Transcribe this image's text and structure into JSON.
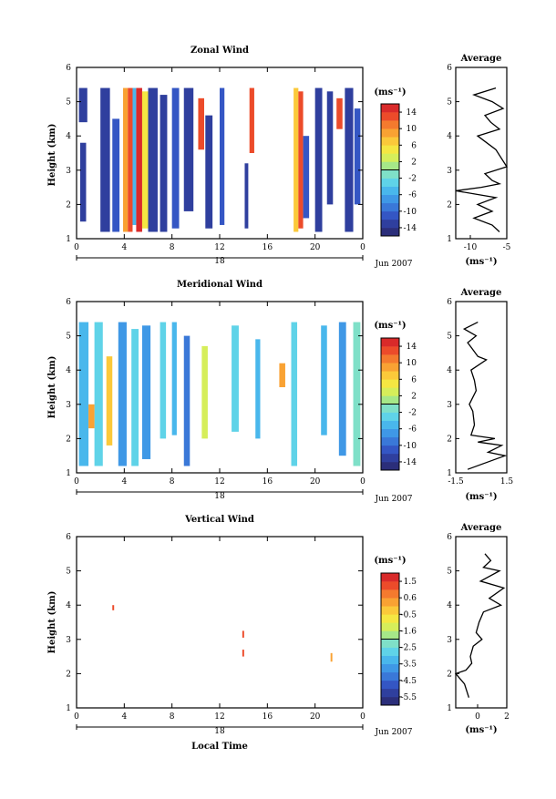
{
  "x_axis_label": "Local Time",
  "date_label": "Jun 2007",
  "day_label": "18",
  "panels": [
    {
      "title": "Zonal Wind",
      "avg_title": "Average",
      "ylabel": "Height (km)",
      "cbar_label": "(ms⁻¹)",
      "avg_xlabel": "(ms⁻¹)"
    },
    {
      "title": "Meridional Wind",
      "avg_title": "Average",
      "ylabel": "Height (km)",
      "cbar_label": "(ms⁻¹)",
      "avg_xlabel": "(ms⁻¹)"
    },
    {
      "title": "Vertical Wind",
      "avg_title": "Average",
      "ylabel": "Height (km)",
      "cbar_label": "(ms⁻¹)",
      "avg_xlabel": "(ms⁻¹)"
    }
  ],
  "chart_data": [
    {
      "type": "heatmap",
      "title": "Zonal Wind",
      "xlabel": "",
      "ylabel": "Height (km)",
      "xlim": [
        0,
        24
      ],
      "ylim": [
        1,
        6
      ],
      "x_ticks": [
        "0",
        "4",
        "8",
        "12",
        "16",
        "20",
        "0"
      ],
      "y_ticks": [
        "1",
        "2",
        "3",
        "4",
        "5",
        "6"
      ],
      "colorbar": {
        "label": "(ms⁻¹)",
        "range": [
          -16,
          16
        ],
        "ticks": [
          "14",
          "10",
          "6",
          "2",
          "-2",
          "-6",
          "-10",
          "-14"
        ]
      },
      "blocks": [
        {
          "t0": 0.2,
          "t1": 0.9,
          "h0": 4.4,
          "h1": 5.4,
          "v": -14
        },
        {
          "t0": 0.3,
          "t1": 0.8,
          "h0": 1.5,
          "h1": 3.8,
          "v": -13
        },
        {
          "t0": 2.0,
          "t1": 2.8,
          "h0": 1.2,
          "h1": 5.4,
          "v": -13
        },
        {
          "t0": 3.0,
          "t1": 3.6,
          "h0": 1.2,
          "h1": 4.5,
          "v": -12
        },
        {
          "t0": 3.9,
          "t1": 4.3,
          "h0": 1.2,
          "h1": 5.4,
          "v": 9
        },
        {
          "t0": 4.3,
          "t1": 4.7,
          "h0": 1.2,
          "h1": 5.4,
          "v": 13
        },
        {
          "t0": 4.7,
          "t1": 5.0,
          "h0": 1.4,
          "h1": 5.4,
          "v": -5
        },
        {
          "t0": 5.0,
          "t1": 5.5,
          "h0": 1.2,
          "h1": 5.4,
          "v": 14
        },
        {
          "t0": 5.5,
          "t1": 6.0,
          "h0": 1.3,
          "h1": 5.3,
          "v": 5
        },
        {
          "t0": 6.0,
          "t1": 6.8,
          "h0": 1.2,
          "h1": 5.4,
          "v": -14
        },
        {
          "t0": 7.0,
          "t1": 7.6,
          "h0": 1.2,
          "h1": 5.2,
          "v": -13
        },
        {
          "t0": 8.0,
          "t1": 8.6,
          "h0": 1.3,
          "h1": 5.4,
          "v": -12
        },
        {
          "t0": 9.0,
          "t1": 9.8,
          "h0": 1.8,
          "h1": 5.4,
          "v": -14
        },
        {
          "t0": 10.2,
          "t1": 10.7,
          "h0": 3.6,
          "h1": 5.1,
          "v": 12
        },
        {
          "t0": 10.8,
          "t1": 11.4,
          "h0": 1.3,
          "h1": 4.6,
          "v": -13
        },
        {
          "t0": 12.0,
          "t1": 12.4,
          "h0": 1.4,
          "h1": 5.4,
          "v": -12
        },
        {
          "t0": 14.1,
          "t1": 14.4,
          "h0": 1.3,
          "h1": 3.2,
          "v": -14
        },
        {
          "t0": 14.5,
          "t1": 14.9,
          "h0": 3.5,
          "h1": 5.4,
          "v": 12
        },
        {
          "t0": 18.2,
          "t1": 18.6,
          "h0": 1.2,
          "h1": 5.4,
          "v": 7
        },
        {
          "t0": 18.6,
          "t1": 19.0,
          "h0": 1.3,
          "h1": 5.3,
          "v": 13
        },
        {
          "t0": 19.0,
          "t1": 19.5,
          "h0": 1.6,
          "h1": 4.0,
          "v": -12
        },
        {
          "t0": 20.0,
          "t1": 20.6,
          "h0": 1.2,
          "h1": 5.4,
          "v": -14
        },
        {
          "t0": 21.0,
          "t1": 21.5,
          "h0": 2.0,
          "h1": 5.3,
          "v": -13
        },
        {
          "t0": 21.8,
          "t1": 22.3,
          "h0": 4.2,
          "h1": 5.1,
          "v": 13
        },
        {
          "t0": 22.5,
          "t1": 23.2,
          "h0": 1.2,
          "h1": 5.4,
          "v": -14
        },
        {
          "t0": 23.3,
          "t1": 23.8,
          "h0": 2.0,
          "h1": 4.8,
          "v": -12
        }
      ],
      "profile": {
        "xlim": [
          -12,
          -5
        ],
        "x_ticks": [
          "-10",
          "-5"
        ],
        "xlabel": "(ms⁻¹)",
        "x": [
          -6.5,
          -9.5,
          -7.0,
          -5.5,
          -8.0,
          -7.2,
          -6.0,
          -9.0,
          -6.5,
          -5.0,
          -8.0,
          -7.0,
          -6.0,
          -8.5,
          -12.0,
          -6.5,
          -9.0,
          -7.0,
          -9.5,
          -7.0,
          -6.0
        ],
        "h": [
          5.4,
          5.2,
          5.0,
          4.8,
          4.6,
          4.4,
          4.2,
          4.0,
          3.6,
          3.1,
          2.9,
          2.7,
          2.6,
          2.5,
          2.4,
          2.2,
          2.0,
          1.8,
          1.6,
          1.4,
          1.2
        ]
      }
    },
    {
      "type": "heatmap",
      "title": "Meridional Wind",
      "xlabel": "",
      "ylabel": "Height (km)",
      "xlim": [
        0,
        24
      ],
      "ylim": [
        1,
        6
      ],
      "x_ticks": [
        "0",
        "4",
        "8",
        "12",
        "16",
        "20",
        "0"
      ],
      "y_ticks": [
        "1",
        "2",
        "3",
        "4",
        "5",
        "6"
      ],
      "colorbar": {
        "label": "(ms⁻¹)",
        "range": [
          -16,
          16
        ],
        "ticks": [
          "14",
          "10",
          "6",
          "2",
          "-2",
          "-6",
          "-10",
          "-14"
        ]
      },
      "blocks": [
        {
          "t0": 0.2,
          "t1": 1.0,
          "h0": 1.2,
          "h1": 5.4,
          "v": -6
        },
        {
          "t0": 1.5,
          "t1": 2.2,
          "h0": 1.2,
          "h1": 5.4,
          "v": -4
        },
        {
          "t0": 2.5,
          "t1": 3.0,
          "h0": 1.8,
          "h1": 4.4,
          "v": 6
        },
        {
          "t0": 3.5,
          "t1": 4.2,
          "h0": 1.2,
          "h1": 5.4,
          "v": -7
        },
        {
          "t0": 4.6,
          "t1": 5.2,
          "h0": 1.2,
          "h1": 5.2,
          "v": -3
        },
        {
          "t0": 5.5,
          "t1": 6.2,
          "h0": 1.4,
          "h1": 5.3,
          "v": -8
        },
        {
          "t0": 7.0,
          "t1": 7.5,
          "h0": 2.0,
          "h1": 5.4,
          "v": -3
        },
        {
          "t0": 8.0,
          "t1": 8.4,
          "h0": 2.1,
          "h1": 5.4,
          "v": -5
        },
        {
          "t0": 9.0,
          "t1": 9.5,
          "h0": 1.2,
          "h1": 5.0,
          "v": -9
        },
        {
          "t0": 10.5,
          "t1": 11.0,
          "h0": 2.0,
          "h1": 4.7,
          "v": 2
        },
        {
          "t0": 13.0,
          "t1": 13.6,
          "h0": 2.2,
          "h1": 5.3,
          "v": -4
        },
        {
          "t0": 15.0,
          "t1": 15.4,
          "h0": 2.0,
          "h1": 4.9,
          "v": -6
        },
        {
          "t0": 18.0,
          "t1": 18.5,
          "h0": 1.2,
          "h1": 5.4,
          "v": -3
        },
        {
          "t0": 20.5,
          "t1": 21.0,
          "h0": 2.1,
          "h1": 5.3,
          "v": -5
        },
        {
          "t0": 22.0,
          "t1": 22.6,
          "h0": 1.5,
          "h1": 5.4,
          "v": -7
        },
        {
          "t0": 23.2,
          "t1": 23.8,
          "h0": 1.2,
          "h1": 5.4,
          "v": -2
        },
        {
          "t0": 1.0,
          "t1": 1.5,
          "h0": 2.3,
          "h1": 3.0,
          "v": 9
        },
        {
          "t0": 17.0,
          "t1": 17.5,
          "h0": 3.5,
          "h1": 4.2,
          "v": 9
        }
      ],
      "profile": {
        "xlim": [
          -1.5,
          1.5
        ],
        "x_ticks": [
          "-1.5",
          "1.5"
        ],
        "xlabel": "(ms⁻¹)",
        "x": [
          -0.2,
          -1.0,
          -0.3,
          -0.8,
          -0.5,
          -0.2,
          0.3,
          -0.6,
          -0.4,
          -0.3,
          -0.7,
          -0.5,
          -0.4,
          -0.6,
          0.8,
          -0.2,
          1.2,
          0.4,
          1.4,
          0.3,
          -0.8
        ],
        "h": [
          5.4,
          5.2,
          5.0,
          4.8,
          4.6,
          4.4,
          4.3,
          4.0,
          3.7,
          3.4,
          3.0,
          2.8,
          2.4,
          2.1,
          2.0,
          1.9,
          1.8,
          1.6,
          1.5,
          1.3,
          1.1
        ]
      }
    },
    {
      "type": "heatmap",
      "title": "Vertical Wind",
      "xlabel": "Local Time",
      "ylabel": "Height (km)",
      "xlim": [
        0,
        24
      ],
      "ylim": [
        1,
        6
      ],
      "x_ticks": [
        "0",
        "4",
        "8",
        "12",
        "16",
        "20",
        "0"
      ],
      "y_ticks": [
        "1",
        "2",
        "3",
        "4",
        "5",
        "6"
      ],
      "colorbar": {
        "label": "(ms⁻¹)",
        "range": [
          -6,
          2
        ],
        "ticks": [
          "1.5",
          "0.6",
          "-0.5",
          "-1.6",
          "-2.5",
          "-3.5",
          "-4.5",
          "-5.5"
        ]
      },
      "blocks": [
        {
          "t0": 3.0,
          "t1": 3.15,
          "h0": 3.85,
          "h1": 4.0,
          "v": 1.0
        },
        {
          "t0": 13.9,
          "t1": 14.05,
          "h0": 3.05,
          "h1": 3.25,
          "v": 1.3
        },
        {
          "t0": 13.9,
          "t1": 14.05,
          "h0": 2.5,
          "h1": 2.7,
          "v": 1.0
        },
        {
          "t0": 21.3,
          "t1": 21.45,
          "h0": 2.35,
          "h1": 2.6,
          "v": 0.2
        }
      ],
      "profile": {
        "xlim": [
          -1.5,
          2
        ],
        "x_ticks": [
          "0",
          "2"
        ],
        "xlabel": "(ms⁻¹)",
        "x": [
          0.5,
          0.9,
          0.4,
          1.5,
          0.2,
          1.8,
          0.8,
          1.6,
          0.4,
          0.1,
          -0.1,
          0.3,
          -0.3,
          -0.5,
          -0.4,
          -0.8,
          -1.5,
          -0.9,
          -0.6
        ],
        "h": [
          5.5,
          5.3,
          5.1,
          5.0,
          4.7,
          4.5,
          4.2,
          4.0,
          3.8,
          3.5,
          3.2,
          3.0,
          2.8,
          2.5,
          2.3,
          2.1,
          2.0,
          1.7,
          1.3
        ]
      }
    }
  ]
}
